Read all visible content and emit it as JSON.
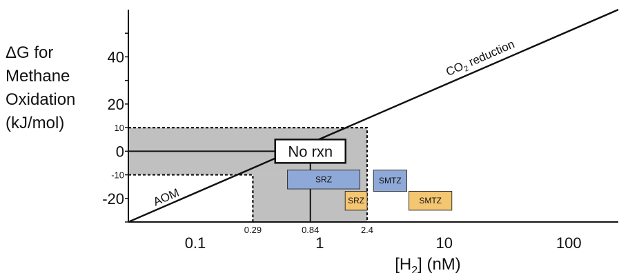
{
  "chart_data": {
    "type": "line",
    "x_scale": "log",
    "xlim": [
      0.029,
      250
    ],
    "ylim": [
      -30,
      60
    ],
    "ylabel_lines": [
      "ΔG for",
      "Methane",
      "Oxidation",
      "(kJ/mol)"
    ],
    "xlabel": {
      "prefix": "[H",
      "sub": "2",
      "suffix": "] (nM)"
    },
    "x_ticks": [
      {
        "value": 0.1,
        "label": "0.1"
      },
      {
        "value": 1,
        "label": "1"
      },
      {
        "value": 10,
        "label": "10"
      },
      {
        "value": 100,
        "label": "100"
      }
    ],
    "y_ticks": [
      {
        "value": 40,
        "label": "40"
      },
      {
        "value": 20,
        "label": "20"
      },
      {
        "value": 0,
        "label": "0"
      },
      {
        "value": -20,
        "label": "-20"
      }
    ],
    "y_minor_ticks": [
      {
        "value": 10,
        "label": "10"
      },
      {
        "value": -10,
        "label": "-10"
      }
    ],
    "x_markers": [
      {
        "value": 0.29,
        "label": "0.29"
      },
      {
        "value": 0.84,
        "label": "0.84"
      },
      {
        "value": 2.4,
        "label": "2.4"
      }
    ],
    "series": [
      {
        "points": [
          [
            0.029,
            -30
          ],
          [
            250,
            60
          ]
        ],
        "labels": [
          "AOM",
          "CO2 reduction"
        ]
      }
    ],
    "regions": [
      {
        "x": [
          0.029,
          2.4
        ],
        "y": [
          -10,
          10
        ]
      },
      {
        "x": [
          0.29,
          2.4
        ],
        "y": [
          -30,
          -10
        ]
      }
    ],
    "zero_line": {
      "x": [
        0.029,
        0.84
      ],
      "y": 0
    },
    "vertical_line": {
      "x": 0.84,
      "y": [
        -30,
        0
      ]
    },
    "annotations": [
      {
        "text": "No rxn",
        "x": 0.84,
        "y": 0
      },
      {
        "text": "AOM",
        "x": 0.06,
        "y": -21
      },
      {
        "text_main": "CO",
        "text_sub": "2",
        "text_rest": " reduction",
        "x": 20,
        "y": 38
      }
    ],
    "boxes": [
      {
        "label": "SRZ",
        "x": [
          0.55,
          2.1
        ],
        "y": [
          -16,
          -8
        ],
        "color": "#8ea9d8"
      },
      {
        "label": "SMTZ",
        "x": [
          2.7,
          5.0
        ],
        "y": [
          -17,
          -8
        ],
        "color": "#8ea9d8"
      },
      {
        "label": "SRZ",
        "x": [
          1.6,
          2.4
        ],
        "y": [
          -25,
          -17
        ],
        "color": "#f4c672"
      },
      {
        "label": "SMTZ",
        "x": [
          5.2,
          11.5
        ],
        "y": [
          -25,
          -17
        ],
        "color": "#f4c672"
      }
    ],
    "colors": {
      "region": "#c0c0c0",
      "line": "#111111",
      "label_box": "#ffffff"
    },
    "grid": false
  }
}
